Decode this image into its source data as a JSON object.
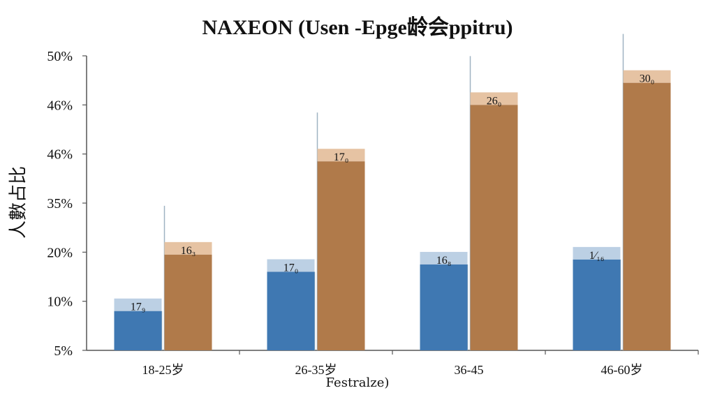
{
  "chart_data": {
    "type": "bar",
    "title": "NAXEON (Usen -Epge龄会ppitru)",
    "ylabel": "人數占比",
    "xlabel": "Festralze)",
    "categories": [
      "18-25岁",
      "26-35岁",
      "36-45",
      "46-60岁"
    ],
    "y_tick_labels": [
      "5%",
      "10%",
      "20%",
      "35%",
      "46%",
      "46%",
      "50%"
    ],
    "series": [
      {
        "color": "#3f78b2",
        "cap_color": "#bcd0e4",
        "values": [
          8,
          16,
          17.5,
          18.5
        ],
        "labels": [
          "17₉",
          "17₀",
          "16₈",
          "1⁄₁₆"
        ]
      },
      {
        "color": "#b07a4a",
        "cap_color": "#e6c3a3",
        "values": [
          19.5,
          38.5,
          50,
          54.5
        ],
        "labels": [
          "16₃",
          "17₀",
          "26₀",
          "30₀"
        ]
      }
    ],
    "ylim": [
      0,
      60
    ],
    "grid": false,
    "legend": "none"
  }
}
